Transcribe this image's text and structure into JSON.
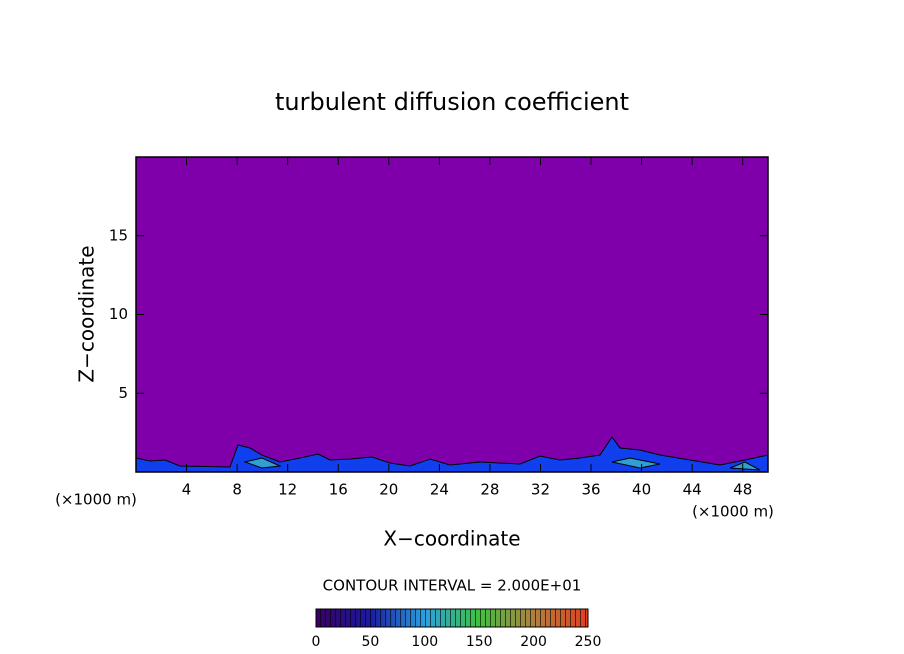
{
  "chart_data": {
    "type": "contour",
    "title": "turbulent diffusion coefficient",
    "x_label": "X−coordinate",
    "y_label": "Z−coordinate",
    "x_unit": "(×1000 m)",
    "y_unit": "(×1000 m)",
    "xlim": [
      0,
      50
    ],
    "xticks": [
      4,
      8,
      12,
      16,
      20,
      24,
      28,
      32,
      36,
      40,
      44,
      48
    ],
    "ylim": [
      0,
      20
    ],
    "yticks": [
      5,
      10,
      15
    ],
    "contour_interval": "CONTOUR INTERVAL = 2.000E+01",
    "colorbar_lim": [
      0,
      250
    ],
    "colorbar_ticks": [
      0,
      50,
      100,
      150,
      200,
      250
    ],
    "background_color": "#7f00aa"
  }
}
